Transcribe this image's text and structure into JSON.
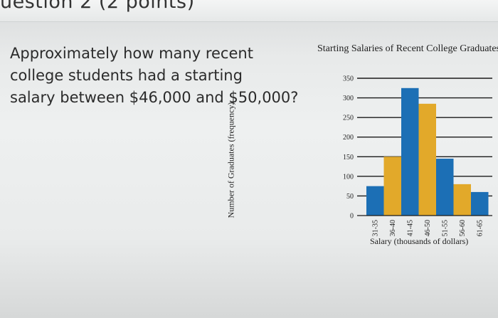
{
  "question": {
    "header": "uestion 2 (2 points)",
    "lines": [
      "Approximately how many recent",
      "college students had a starting",
      "salary between $46,000 and $50,000?"
    ]
  },
  "chart_data": {
    "type": "bar",
    "title": "Starting Salaries of Recent College Graduates",
    "xlabel": "Salary (thousands of dollars)",
    "ylabel": "Number of Graduates (frequency)",
    "categories": [
      "31-35",
      "36-40",
      "41-45",
      "46-50",
      "51-55",
      "56-60",
      "61-65"
    ],
    "values": [
      75,
      150,
      325,
      285,
      145,
      80,
      60
    ],
    "bar_colors": [
      "#1c6fb5",
      "#e2a92a",
      "#1c6fb5",
      "#e2a92a",
      "#1c6fb5",
      "#e2a92a",
      "#1c6fb5"
    ],
    "ylim": [
      0,
      350
    ],
    "yticks": [
      0,
      50,
      100,
      150,
      200,
      250,
      300,
      350
    ],
    "grid": true
  }
}
